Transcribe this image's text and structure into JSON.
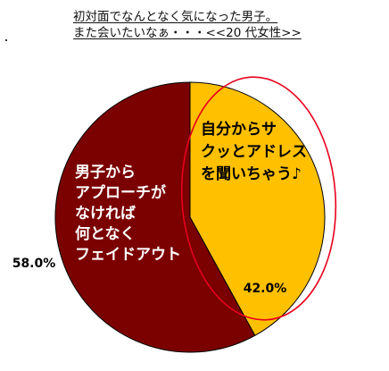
{
  "title": {
    "line1": "初対面でなんとなく気になった男子。",
    "line2": "また会いたいなぁ・・・<<20 代女性>>"
  },
  "chart_data": {
    "type": "pie",
    "slices": [
      {
        "label": "自分からサクッとアドレスを聞いちゃう♪",
        "label_lines": [
          "自分からサ",
          "クッとアドレス",
          "を聞いちゃう♪"
        ],
        "value": 42.0,
        "value_label": "42.0%",
        "color": "#FFC000",
        "label_color": "#000000",
        "highlighted": true
      },
      {
        "label": "男子からアプローチがなければ何となくフェイドアウト",
        "label_lines": [
          "男子から",
          "アプローチが",
          "なければ",
          "何となく",
          "フェイドアウト"
        ],
        "value": 58.0,
        "value_label": "58.0%",
        "color": "#7B0000",
        "label_color": "#FFFFFF",
        "highlighted": false
      }
    ],
    "highlight_color": "#E8001C",
    "border_color": "#000000"
  }
}
